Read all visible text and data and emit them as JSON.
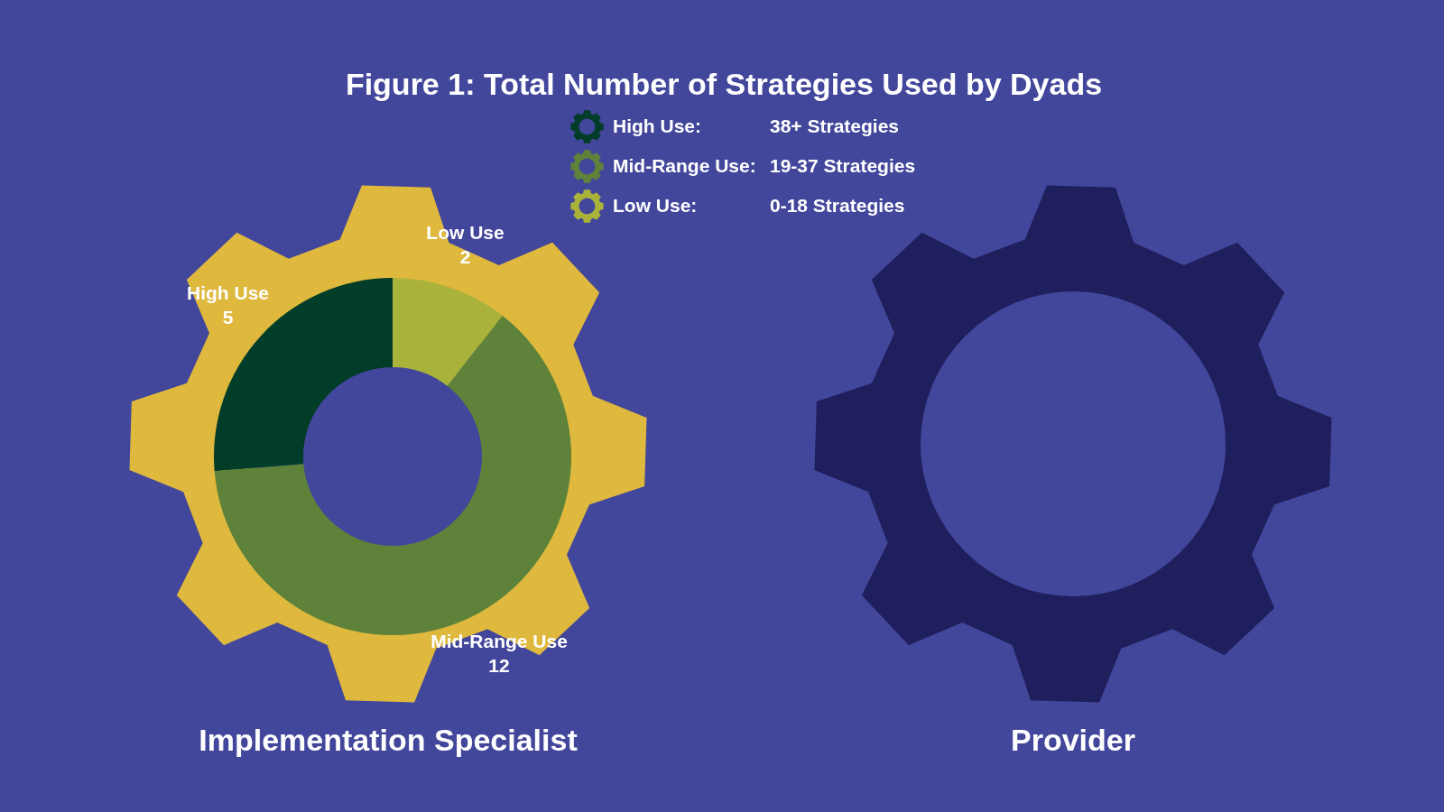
{
  "chart_data": [
    {
      "type": "donut",
      "title": "Figure 1: Total Number of Strategies Used by Dyads",
      "xlabel": "Implementation Specialist",
      "categories": [
        "High Use",
        "Mid-Range Use",
        "Low Use"
      ],
      "values": [
        5,
        12,
        2
      ],
      "colors": [
        "#013d29",
        "#5e8239",
        "#a9b23a"
      ],
      "data_labels": true,
      "annotations": [
        "High Use:",
        "38+ Strategies",
        "Mid-Range Use:",
        "19-37 Strategies",
        "Low Use:",
        "0-18 Strategies"
      ]
    },
    {
      "type": "other",
      "xlabel": "Provider"
    }
  ]
}
